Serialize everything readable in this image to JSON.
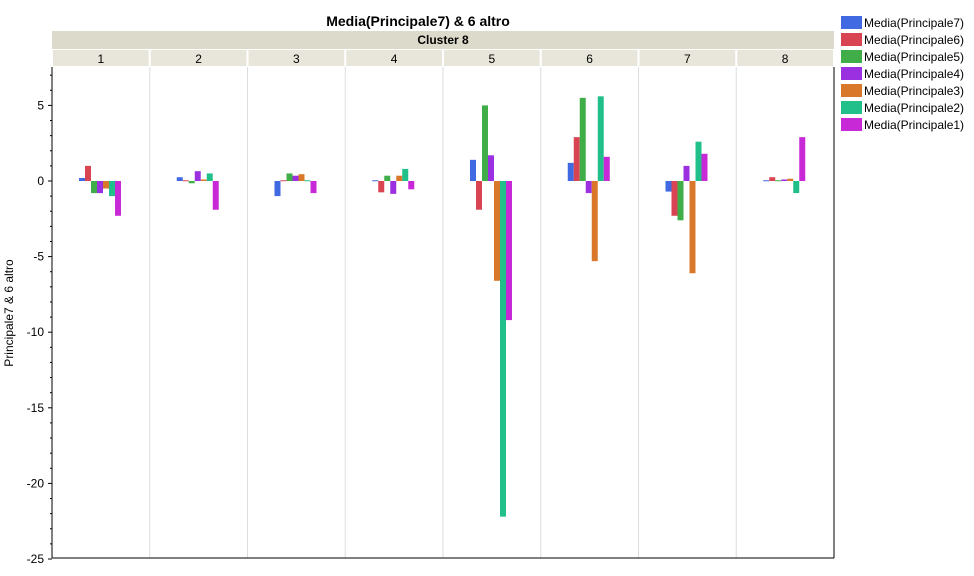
{
  "chart_data": {
    "type": "bar",
    "title": "Media(Principale7) & 6 altro",
    "panel_header": "Cluster 8",
    "ylabel": "Principale7 & 6 altro",
    "xlabel": "",
    "categories": [
      "1",
      "2",
      "3",
      "4",
      "5",
      "6",
      "7",
      "8"
    ],
    "ylim": [
      -25,
      7.5
    ],
    "yticks": [
      5,
      0,
      -5,
      -10,
      -15,
      -20,
      -25
    ],
    "ytick_labels": [
      "5",
      "0",
      "-5",
      "-10",
      "-15",
      "-20",
      "-25"
    ],
    "grid": "vertical panel separators only",
    "legend_position": "top-right",
    "series": [
      {
        "name": "Media(Principale7)",
        "color": "#4169E1",
        "values": [
          0.2,
          0.25,
          -1.0,
          0.05,
          1.4,
          1.2,
          -0.7,
          0.05
        ]
      },
      {
        "name": "Media(Principale6)",
        "color": "#D94452",
        "values": [
          1.0,
          0.05,
          0.05,
          -0.75,
          -1.9,
          2.9,
          -2.3,
          0.25
        ]
      },
      {
        "name": "Media(Principale5)",
        "color": "#3FAE49",
        "values": [
          -0.8,
          -0.15,
          0.5,
          0.35,
          5.0,
          5.5,
          -2.6,
          0.05
        ]
      },
      {
        "name": "Media(Principale4)",
        "color": "#9B30E0",
        "values": [
          -0.8,
          0.65,
          0.35,
          -0.85,
          1.7,
          -0.8,
          1.0,
          0.1
        ]
      },
      {
        "name": "Media(Principale3)",
        "color": "#D9782A",
        "values": [
          -0.5,
          0.1,
          0.45,
          0.35,
          -6.6,
          -5.3,
          -6.1,
          0.15
        ]
      },
      {
        "name": "Media(Principale2)",
        "color": "#21C08B",
        "values": [
          -1.0,
          0.5,
          0.05,
          0.8,
          -22.2,
          5.6,
          2.6,
          -0.8
        ]
      },
      {
        "name": "Media(Principale1)",
        "color": "#C829D6",
        "values": [
          -2.3,
          -1.9,
          -0.8,
          -0.55,
          -9.2,
          1.6,
          1.8,
          2.9
        ]
      }
    ]
  }
}
